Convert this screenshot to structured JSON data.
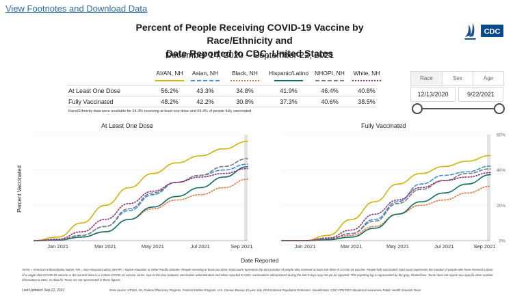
{
  "link": {
    "label": "View Footnotes and Download Data"
  },
  "title_line1": "Percent of People Receiving COVID-19 Vaccine by Race/Ethnicity and",
  "title_line2": "Date Reported to CDC, United States",
  "date_range": "December 14, 2020 – September 22, 2021",
  "logo_text": "CDC",
  "legend": [
    {
      "label": "AI/AN, NH",
      "color": "#d4b106",
      "dash": "solid"
    },
    {
      "label": "Asian, NH",
      "color": "#3a8ee6",
      "dash": "dashed"
    },
    {
      "label": "Black, NH",
      "color": "#e8733a",
      "dash": "dotted"
    },
    {
      "label": "Hispanic/Latino",
      "color": "#0e6b63",
      "dash": "solid"
    },
    {
      "label": "NHOPI, NH",
      "color": "#7a7a7a",
      "dash": "dashed"
    },
    {
      "label": "White, NH",
      "color": "#8e2a7a",
      "dash": "dotted"
    }
  ],
  "table": {
    "rows": [
      {
        "label": "At Least One Dose",
        "values": [
          "56.2%",
          "43.3%",
          "34.8%",
          "41.9%",
          "46.4%",
          "40.8%"
        ]
      },
      {
        "label": "Fully Vaccinated",
        "values": [
          "48.2%",
          "42.2%",
          "30.8%",
          "37.3%",
          "40.6%",
          "38.5%"
        ]
      }
    ],
    "note": "Race/Ethnicity data were available for 64.3% receiving at least one dose and 69.4% of people fully vaccinated."
  },
  "filters": {
    "tabs": [
      "Race",
      "Sex",
      "Age"
    ],
    "start_date": "12/13/2020",
    "end_date": "9/22/2021"
  },
  "axes": {
    "ylabel": "Percent Vaccinated",
    "xlabel": "Date Reported"
  },
  "chart_data": [
    {
      "type": "line",
      "title": "At Least One Dose",
      "x": [
        "Dec 14 2020",
        "Jan 15 2021",
        "Feb 15 2021",
        "Mar 15 2021",
        "Apr 15 2021",
        "May 15 2021",
        "Jun 15 2021",
        "Jul 15 2021",
        "Aug 15 2021",
        "Sep 22 2021"
      ],
      "xticks": [
        "Jan 2021",
        "Mar 2021",
        "May 2021",
        "Jul 2021",
        "Sep 2021"
      ],
      "ylim": [
        0,
        60
      ],
      "yticks": [],
      "series": [
        {
          "name": "AI/AN, NH",
          "values": [
            0,
            2,
            10,
            20,
            30,
            38,
            44,
            48,
            52,
            56.2
          ]
        },
        {
          "name": "Asian, NH",
          "values": [
            0,
            0.5,
            3,
            8,
            17,
            26,
            33,
            37,
            40,
            43.3
          ]
        },
        {
          "name": "Black, NH",
          "values": [
            0,
            0.3,
            2,
            5,
            12,
            18,
            23,
            26,
            30,
            34.8
          ]
        },
        {
          "name": "Hispanic/Latino",
          "values": [
            0,
            0.3,
            2,
            5,
            12,
            19,
            25,
            30,
            36,
            41.9
          ]
        },
        {
          "name": "NHOPI, NH",
          "values": [
            0,
            0.5,
            3,
            8,
            18,
            27,
            33,
            37,
            42,
            46.4
          ]
        },
        {
          "name": "White, NH",
          "values": [
            0,
            0.8,
            5,
            12,
            21,
            28,
            33,
            36,
            38,
            40.8
          ]
        }
      ],
      "grid": true
    },
    {
      "type": "line",
      "title": "Fully Vaccinated",
      "x": [
        "Dec 14 2020",
        "Jan 15 2021",
        "Feb 15 2021",
        "Mar 15 2021",
        "Apr 15 2021",
        "May 15 2021",
        "Jun 15 2021",
        "Jul 15 2021",
        "Aug 15 2021",
        "Sep 22 2021"
      ],
      "xticks": [
        "Jan 2021",
        "Mar 2021",
        "May 2021",
        "Jul 2021",
        "Sep 2021"
      ],
      "ylim": [
        0,
        60
      ],
      "yticks": [
        "0%",
        "20%",
        "40%",
        "60%"
      ],
      "series": [
        {
          "name": "AI/AN, NH",
          "values": [
            0,
            0,
            3,
            12,
            22,
            32,
            38,
            42,
            45,
            48.2
          ]
        },
        {
          "name": "Asian, NH",
          "values": [
            0,
            0,
            1,
            4,
            12,
            22,
            32,
            37,
            39,
            42.2
          ]
        },
        {
          "name": "Black, NH",
          "values": [
            0,
            0,
            1,
            3,
            8,
            15,
            20,
            23,
            27,
            30.8
          ]
        },
        {
          "name": "Hispanic/Latino",
          "values": [
            0,
            0,
            0.5,
            2,
            7,
            15,
            22,
            27,
            32,
            37.3
          ]
        },
        {
          "name": "NHOPI, NH",
          "values": [
            0,
            0,
            1,
            4,
            11,
            21,
            29,
            34,
            38,
            40.6
          ]
        },
        {
          "name": "White, NH",
          "values": [
            0,
            0,
            1.5,
            6,
            15,
            23,
            30,
            34,
            36,
            38.5
          ]
        }
      ],
      "grid": true
    }
  ],
  "footnote": "AI/AN = American Indian/Alaska Native; NH = Non-Hispanic/Latino; NHOPI = Native Hawaiian or Other Pacific Islander; People receiving at least one dose; total count represents the total number of people who received at least one dose of COVID-19 vaccine. People fully vaccinated; total count represents the number of people who have received a dose of a single-shot COVID-19 vaccine or the second dose in a 2-dose COVID-19 vaccine series. Due to the time between vaccination administration and when reported to CDC, vaccinations administered during the last 5 days may not yet be reported. This reporting lag is represented by the gray, shaded box. Texas does not report race-specific dose number information to CDC, so data for Texas are not represented in these figures.",
  "last_updated": "Last Updated: Sep 22, 2021",
  "datasource": "Data source: VTrckS, IIS, Federal Pharmacy Program, Federal Entities Program, U.S. Census Bureau 10-year July 2019 National Population Estimates; Visualization: CDC CPR DEO Situational Awareness Public Health Scientist Team"
}
